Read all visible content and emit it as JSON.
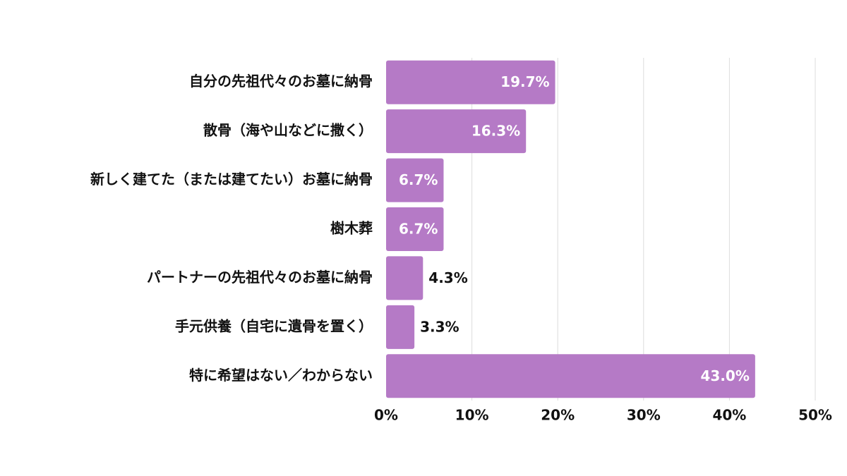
{
  "chart_data": {
    "type": "hbar",
    "categories": [
      "自分の先祖代々のお墓に納骨",
      "散骨（海や山などに撒く）",
      "新しく建てた（または建てたい）お墓に納骨",
      "樹木葬",
      "パートナーの先祖代々のお墓に納骨",
      "手元供養（自宅に遺骨を置く）",
      "特に希望はない／わからない"
    ],
    "values": [
      19.7,
      16.3,
      6.7,
      6.7,
      4.3,
      3.3,
      43.0
    ],
    "value_labels": [
      "19.7%",
      "16.3%",
      "6.7%",
      "6.7%",
      "4.3%",
      "3.3%",
      "43.0%"
    ],
    "color": "#b57ac6",
    "xlim": [
      0,
      50
    ],
    "xticks": [
      {
        "value": 0,
        "label": "0%"
      },
      {
        "value": 10,
        "label": "10%"
      },
      {
        "value": 20,
        "label": "20%"
      },
      {
        "value": 30,
        "label": "30%"
      },
      {
        "value": 40,
        "label": "40%"
      },
      {
        "value": 50,
        "label": "50%"
      }
    ],
    "grid": true
  }
}
